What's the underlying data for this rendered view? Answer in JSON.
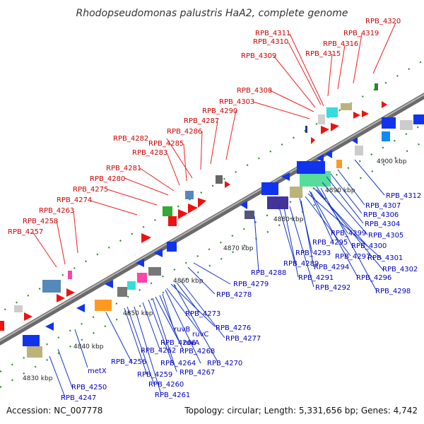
{
  "title": "Rhodopseudomonas palustris HaA2, complete genome",
  "accession": "Accession: NC_007778",
  "summary": "Topology: circular; Length: 5,331,656 bp; Genes: 4,742",
  "colors": {
    "forward_label": "#cc0000",
    "reverse_label": "#0000bb",
    "forward_gene": "#ee1111",
    "reverse_gene": "#1133ee",
    "backbone": "#8a8a8a"
  },
  "ticks": [
    "4830 kbp",
    "4840 kbp",
    "4850 kbp",
    "4860 kbp",
    "4870 kbp",
    "4880 kbp",
    "4890 kbp",
    "4900 kbp"
  ],
  "forward_labels": [
    "RPB_4320",
    "RPB_4319",
    "RPB_4311",
    "RPB_4316",
    "RPB_4310",
    "RPB_4315",
    "RPB_4309",
    "RPB_4308",
    "RPB_4303",
    "RPB_4290",
    "RPB_4287",
    "RPB_4286",
    "RPB_4282",
    "RPB_4285",
    "RPB_4283",
    "RPB_4281",
    "RPB_4280",
    "RPB_4275",
    "RPB_4274",
    "RPB_4263",
    "RPB_4258",
    "RPB_4257"
  ],
  "reverse_labels_upper": [
    "RPB_4312",
    "RPB_4307",
    "RPB_4306",
    "RPB_4304",
    "RPB_4305",
    "RPB_4299",
    "RPB_4300",
    "RPB_4295",
    "RPB_4301",
    "RPB_4293",
    "RPB_4297",
    "RPB_4302",
    "RPB_4289",
    "RPB_4294",
    "RPB_4288",
    "RPB_4291",
    "RPB_4296",
    "RPB_4292",
    "RPB_4298",
    "RPB_4279",
    "RPB_4278"
  ],
  "reverse_labels_lower": [
    "RPB_4273",
    "RPB_4276",
    "ruvB",
    "ruvC",
    "RPB_4277",
    "RPB_4266",
    "ruvA",
    "RPB_4262",
    "RPB_4268",
    "RPB_4256",
    "RPB_4264",
    "RPB_4270",
    "RPB_4267",
    "metX",
    "RPB_4259",
    "RPB_4260",
    "RPB_4250",
    "RPB_4261",
    "RPB_4247"
  ]
}
